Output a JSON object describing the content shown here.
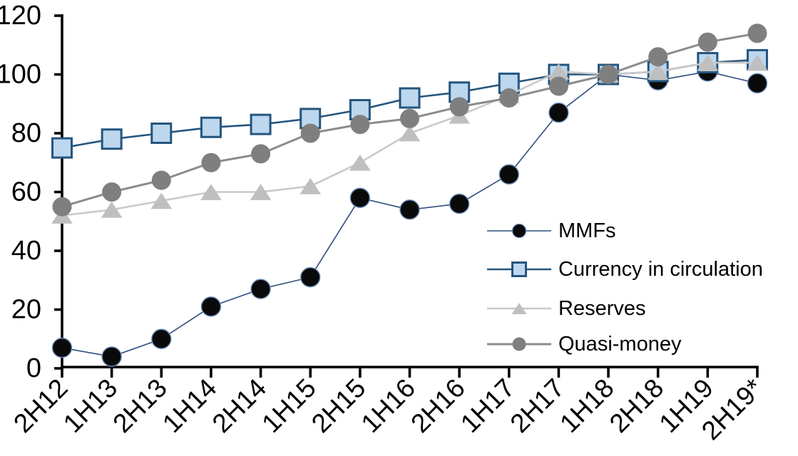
{
  "chart_data": {
    "type": "line",
    "title": "",
    "xlabel": "",
    "ylabel": "",
    "categories": [
      "2H12",
      "1H13",
      "2H13",
      "1H14",
      "2H14",
      "1H15",
      "2H15",
      "1H16",
      "2H16",
      "1H17",
      "2H17",
      "1H18",
      "2H18",
      "1H19",
      "2H19*"
    ],
    "series": [
      {
        "name": "MMFs",
        "marker": "circle",
        "marker_fill": "#0a0a0a",
        "marker_stroke": "#6b8cba",
        "line_color": "#2e4d7e",
        "line_width": 1.6,
        "values": [
          7,
          4,
          10,
          21,
          27,
          31,
          58,
          54,
          56,
          66,
          87,
          100,
          98,
          101,
          97
        ]
      },
      {
        "name": "Currency in circulation",
        "marker": "square",
        "marker_fill": "#bdd7ee",
        "marker_stroke": "#24557e",
        "line_color": "#24557e",
        "line_width": 2.6,
        "values": [
          75,
          78,
          80,
          82,
          83,
          85,
          88,
          92,
          94,
          97,
          100,
          100,
          101,
          104,
          105
        ]
      },
      {
        "name": "Reserves",
        "marker": "triangle",
        "marker_fill": "#bfbfbf",
        "marker_stroke": "none",
        "line_color": "#c9c9c9",
        "line_width": 2.6,
        "values": [
          52,
          54,
          57,
          60,
          60,
          62,
          70,
          80,
          86,
          93,
          101,
          100,
          101,
          104,
          104
        ]
      },
      {
        "name": "Quasi-money",
        "marker": "circle",
        "marker_fill": "#7f7f7f",
        "marker_stroke": "none",
        "line_color": "#8c8c8c",
        "line_width": 3,
        "values": [
          55,
          60,
          64,
          70,
          73,
          80,
          83,
          85,
          89,
          92,
          96,
          100,
          106,
          111,
          114
        ]
      }
    ],
    "ylim": [
      0,
      120
    ],
    "yticks": [
      0,
      20,
      40,
      60,
      80,
      100,
      120
    ],
    "grid": false,
    "legend_position": "inside-right",
    "x_tick_rotation": -45,
    "axis_color": "#000000"
  }
}
